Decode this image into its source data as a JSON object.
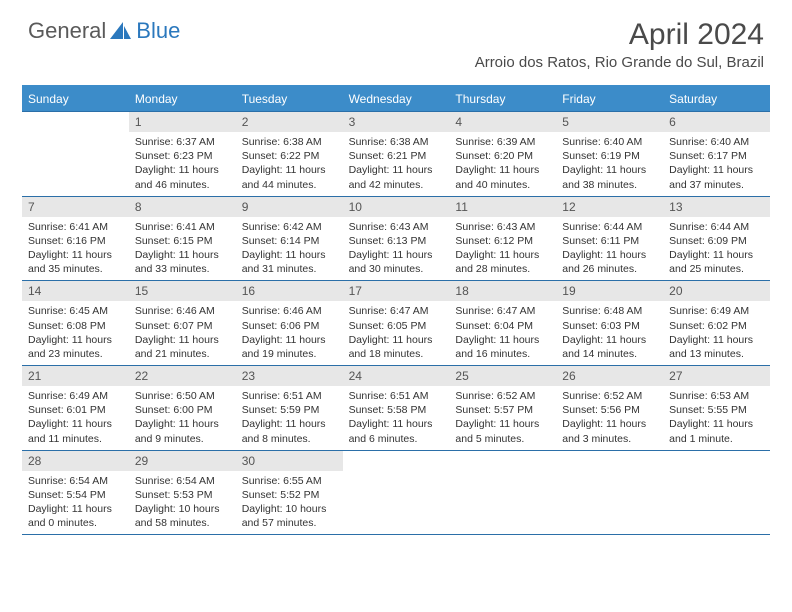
{
  "logo": {
    "general": "General",
    "blue": "Blue"
  },
  "title": "April 2024",
  "location": "Arroio dos Ratos, Rio Grande do Sul, Brazil",
  "day_headers": [
    "Sunday",
    "Monday",
    "Tuesday",
    "Wednesday",
    "Thursday",
    "Friday",
    "Saturday"
  ],
  "colors": {
    "header_bg": "#3c8cc9",
    "header_text": "#ffffff",
    "daynum_bg": "#e7e7e7",
    "border": "#2b6fa8",
    "logo_gray": "#5a5a5a",
    "logo_blue": "#2b78bd"
  },
  "weeks": [
    [
      {
        "num": "",
        "sunrise": "",
        "sunset": "",
        "daylight": ""
      },
      {
        "num": "1",
        "sunrise": "Sunrise: 6:37 AM",
        "sunset": "Sunset: 6:23 PM",
        "daylight": "Daylight: 11 hours and 46 minutes."
      },
      {
        "num": "2",
        "sunrise": "Sunrise: 6:38 AM",
        "sunset": "Sunset: 6:22 PM",
        "daylight": "Daylight: 11 hours and 44 minutes."
      },
      {
        "num": "3",
        "sunrise": "Sunrise: 6:38 AM",
        "sunset": "Sunset: 6:21 PM",
        "daylight": "Daylight: 11 hours and 42 minutes."
      },
      {
        "num": "4",
        "sunrise": "Sunrise: 6:39 AM",
        "sunset": "Sunset: 6:20 PM",
        "daylight": "Daylight: 11 hours and 40 minutes."
      },
      {
        "num": "5",
        "sunrise": "Sunrise: 6:40 AM",
        "sunset": "Sunset: 6:19 PM",
        "daylight": "Daylight: 11 hours and 38 minutes."
      },
      {
        "num": "6",
        "sunrise": "Sunrise: 6:40 AM",
        "sunset": "Sunset: 6:17 PM",
        "daylight": "Daylight: 11 hours and 37 minutes."
      }
    ],
    [
      {
        "num": "7",
        "sunrise": "Sunrise: 6:41 AM",
        "sunset": "Sunset: 6:16 PM",
        "daylight": "Daylight: 11 hours and 35 minutes."
      },
      {
        "num": "8",
        "sunrise": "Sunrise: 6:41 AM",
        "sunset": "Sunset: 6:15 PM",
        "daylight": "Daylight: 11 hours and 33 minutes."
      },
      {
        "num": "9",
        "sunrise": "Sunrise: 6:42 AM",
        "sunset": "Sunset: 6:14 PM",
        "daylight": "Daylight: 11 hours and 31 minutes."
      },
      {
        "num": "10",
        "sunrise": "Sunrise: 6:43 AM",
        "sunset": "Sunset: 6:13 PM",
        "daylight": "Daylight: 11 hours and 30 minutes."
      },
      {
        "num": "11",
        "sunrise": "Sunrise: 6:43 AM",
        "sunset": "Sunset: 6:12 PM",
        "daylight": "Daylight: 11 hours and 28 minutes."
      },
      {
        "num": "12",
        "sunrise": "Sunrise: 6:44 AM",
        "sunset": "Sunset: 6:11 PM",
        "daylight": "Daylight: 11 hours and 26 minutes."
      },
      {
        "num": "13",
        "sunrise": "Sunrise: 6:44 AM",
        "sunset": "Sunset: 6:09 PM",
        "daylight": "Daylight: 11 hours and 25 minutes."
      }
    ],
    [
      {
        "num": "14",
        "sunrise": "Sunrise: 6:45 AM",
        "sunset": "Sunset: 6:08 PM",
        "daylight": "Daylight: 11 hours and 23 minutes."
      },
      {
        "num": "15",
        "sunrise": "Sunrise: 6:46 AM",
        "sunset": "Sunset: 6:07 PM",
        "daylight": "Daylight: 11 hours and 21 minutes."
      },
      {
        "num": "16",
        "sunrise": "Sunrise: 6:46 AM",
        "sunset": "Sunset: 6:06 PM",
        "daylight": "Daylight: 11 hours and 19 minutes."
      },
      {
        "num": "17",
        "sunrise": "Sunrise: 6:47 AM",
        "sunset": "Sunset: 6:05 PM",
        "daylight": "Daylight: 11 hours and 18 minutes."
      },
      {
        "num": "18",
        "sunrise": "Sunrise: 6:47 AM",
        "sunset": "Sunset: 6:04 PM",
        "daylight": "Daylight: 11 hours and 16 minutes."
      },
      {
        "num": "19",
        "sunrise": "Sunrise: 6:48 AM",
        "sunset": "Sunset: 6:03 PM",
        "daylight": "Daylight: 11 hours and 14 minutes."
      },
      {
        "num": "20",
        "sunrise": "Sunrise: 6:49 AM",
        "sunset": "Sunset: 6:02 PM",
        "daylight": "Daylight: 11 hours and 13 minutes."
      }
    ],
    [
      {
        "num": "21",
        "sunrise": "Sunrise: 6:49 AM",
        "sunset": "Sunset: 6:01 PM",
        "daylight": "Daylight: 11 hours and 11 minutes."
      },
      {
        "num": "22",
        "sunrise": "Sunrise: 6:50 AM",
        "sunset": "Sunset: 6:00 PM",
        "daylight": "Daylight: 11 hours and 9 minutes."
      },
      {
        "num": "23",
        "sunrise": "Sunrise: 6:51 AM",
        "sunset": "Sunset: 5:59 PM",
        "daylight": "Daylight: 11 hours and 8 minutes."
      },
      {
        "num": "24",
        "sunrise": "Sunrise: 6:51 AM",
        "sunset": "Sunset: 5:58 PM",
        "daylight": "Daylight: 11 hours and 6 minutes."
      },
      {
        "num": "25",
        "sunrise": "Sunrise: 6:52 AM",
        "sunset": "Sunset: 5:57 PM",
        "daylight": "Daylight: 11 hours and 5 minutes."
      },
      {
        "num": "26",
        "sunrise": "Sunrise: 6:52 AM",
        "sunset": "Sunset: 5:56 PM",
        "daylight": "Daylight: 11 hours and 3 minutes."
      },
      {
        "num": "27",
        "sunrise": "Sunrise: 6:53 AM",
        "sunset": "Sunset: 5:55 PM",
        "daylight": "Daylight: 11 hours and 1 minute."
      }
    ],
    [
      {
        "num": "28",
        "sunrise": "Sunrise: 6:54 AM",
        "sunset": "Sunset: 5:54 PM",
        "daylight": "Daylight: 11 hours and 0 minutes."
      },
      {
        "num": "29",
        "sunrise": "Sunrise: 6:54 AM",
        "sunset": "Sunset: 5:53 PM",
        "daylight": "Daylight: 10 hours and 58 minutes."
      },
      {
        "num": "30",
        "sunrise": "Sunrise: 6:55 AM",
        "sunset": "Sunset: 5:52 PM",
        "daylight": "Daylight: 10 hours and 57 minutes."
      },
      {
        "num": "",
        "sunrise": "",
        "sunset": "",
        "daylight": ""
      },
      {
        "num": "",
        "sunrise": "",
        "sunset": "",
        "daylight": ""
      },
      {
        "num": "",
        "sunrise": "",
        "sunset": "",
        "daylight": ""
      },
      {
        "num": "",
        "sunrise": "",
        "sunset": "",
        "daylight": ""
      }
    ]
  ]
}
